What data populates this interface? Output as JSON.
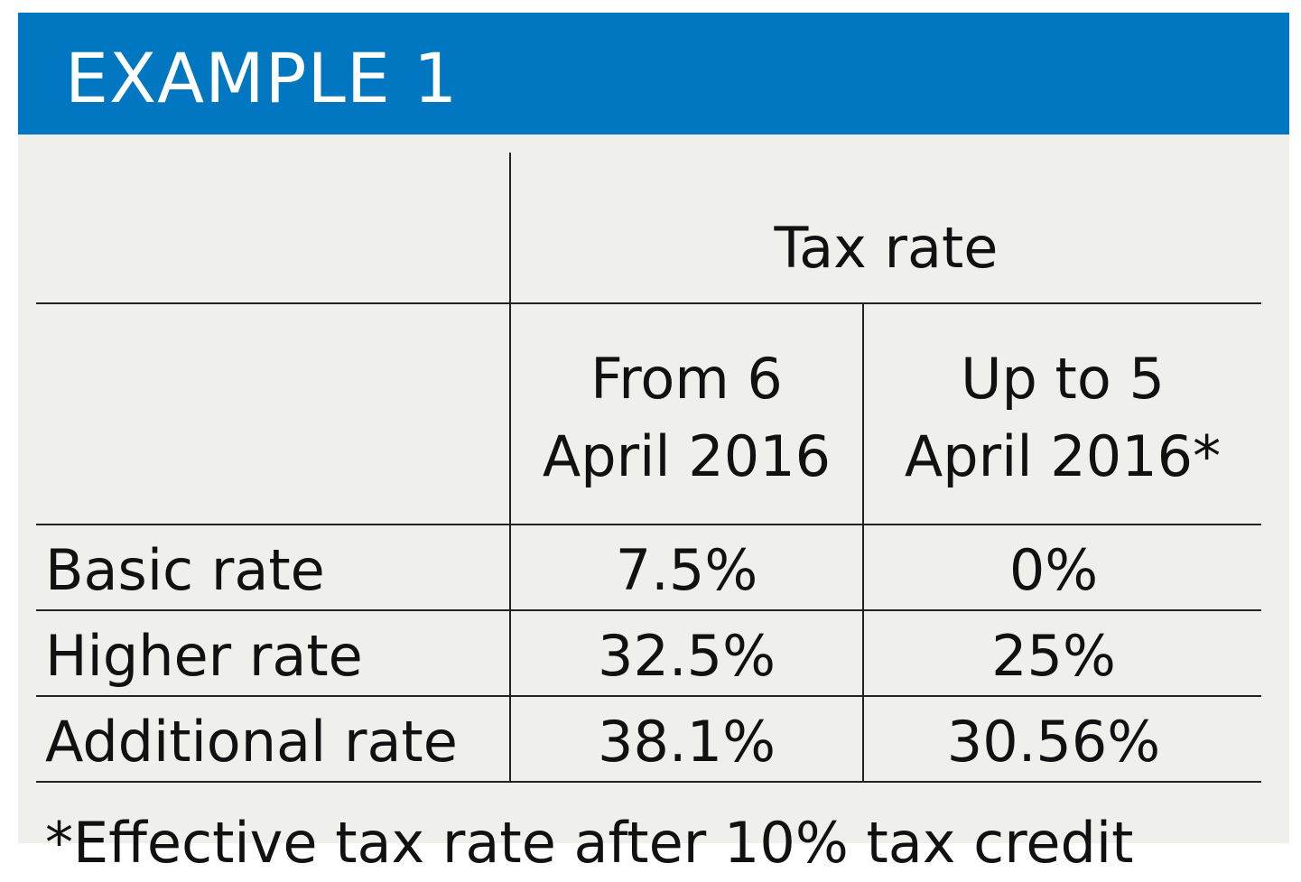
{
  "header": {
    "title": "EXAMPLE 1"
  },
  "table": {
    "group_header": "Tax rate",
    "columns": [
      {
        "line1": "From 6",
        "line2": "April 2016"
      },
      {
        "line1": "Up to 5",
        "line2": "April 2016*"
      }
    ],
    "rows": [
      {
        "label": "Basic rate",
        "values": [
          "7.5%",
          "0%"
        ]
      },
      {
        "label": "Higher rate",
        "values": [
          "32.5%",
          "25%"
        ]
      },
      {
        "label": "Additional rate",
        "values": [
          "38.1%",
          "30.56%"
        ]
      }
    ]
  },
  "footnote": "*Effective tax rate after 10% tax credit",
  "colors": {
    "header_background": "#0077c0",
    "header_text": "#ffffff",
    "card_background": "#efefeb",
    "rule": "#222222"
  }
}
